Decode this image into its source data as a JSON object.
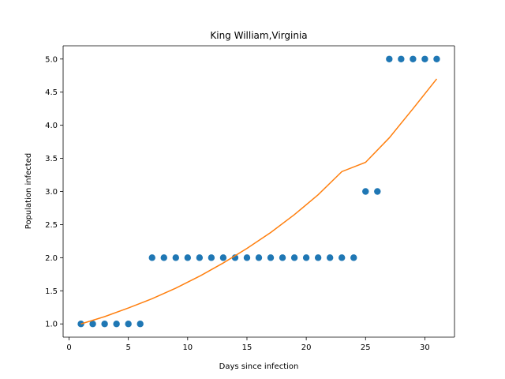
{
  "chart_data": {
    "type": "scatter",
    "title": "King William,Virginia",
    "xlabel": "Days since infection",
    "ylabel": "Population infected",
    "xlim": [
      -0.5,
      32.5
    ],
    "ylim": [
      0.8,
      5.2
    ],
    "x_ticks": [
      0,
      5,
      10,
      15,
      20,
      25,
      30
    ],
    "y_ticks": [
      1.0,
      1.5,
      2.0,
      2.5,
      3.0,
      3.5,
      4.0,
      4.5,
      5.0
    ],
    "grid": false,
    "series": [
      {
        "type": "scatter",
        "color": "#1f77b4",
        "x": [
          1,
          2,
          3,
          4,
          5,
          6,
          7,
          8,
          9,
          10,
          11,
          12,
          13,
          14,
          15,
          16,
          17,
          18,
          19,
          20,
          21,
          22,
          23,
          24,
          25,
          26,
          27,
          28,
          29,
          30,
          31
        ],
        "y": [
          1,
          1,
          1,
          1,
          1,
          1,
          2,
          2,
          2,
          2,
          2,
          2,
          2,
          2,
          2,
          2,
          2,
          2,
          2,
          2,
          2,
          2,
          2,
          2,
          3,
          3,
          5,
          5,
          5,
          5,
          5
        ]
      },
      {
        "type": "line",
        "color": "#ff7f0e",
        "x": [
          1,
          3,
          5,
          7,
          9,
          11,
          13,
          15,
          17,
          19,
          21,
          23,
          25,
          27,
          29,
          31
        ],
        "y": [
          1.0,
          1.11,
          1.24,
          1.38,
          1.54,
          1.72,
          1.92,
          2.14,
          2.38,
          2.65,
          2.95,
          3.3,
          3.44,
          3.81,
          4.25,
          4.7
        ]
      }
    ]
  }
}
